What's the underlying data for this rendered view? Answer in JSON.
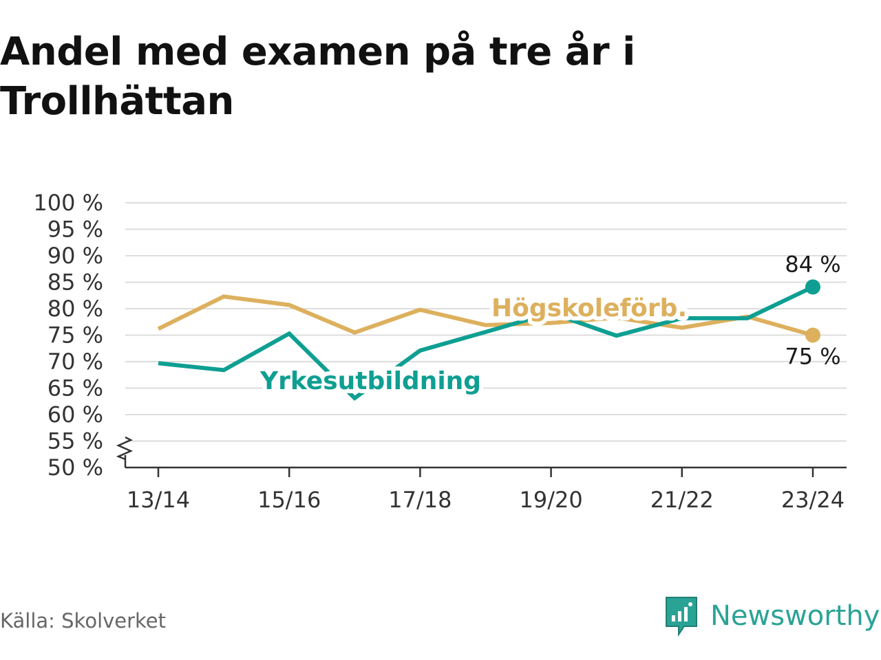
{
  "title": "Andel med examen på tre år i Trollhättan",
  "source": "Källa: Skolverket",
  "brand": {
    "name": "Newsworthy",
    "icon": "newsworthy-logo-icon",
    "color": "#2aa395"
  },
  "chart_data": {
    "type": "line",
    "title": "Andel med examen på tre år i Trollhättan",
    "xlabel": "",
    "ylabel": "",
    "x": [
      "13/14",
      "14/15",
      "15/16",
      "16/17",
      "17/18",
      "18/19",
      "19/20",
      "20/21",
      "21/22",
      "22/23",
      "23/24"
    ],
    "x_tick_labels": [
      "13/14",
      "15/16",
      "17/18",
      "19/20",
      "21/22",
      "23/24"
    ],
    "ylim": [
      50,
      100
    ],
    "y_ticks": [
      50,
      55,
      60,
      65,
      70,
      75,
      80,
      85,
      90,
      95,
      100
    ],
    "y_tick_labels": [
      "50 %",
      "55 %",
      "60 %",
      "65 %",
      "70 %",
      "75 %",
      "80 %",
      "85 %",
      "90 %",
      "95 %",
      "100 %"
    ],
    "y_axis_broken": true,
    "grid": true,
    "series": [
      {
        "name": "Högskoleförb.",
        "color": "#ddb05e",
        "values": [
          76.2,
          82.3,
          80.7,
          75.5,
          79.8,
          76.9,
          77.3,
          78.3,
          76.4,
          78.5,
          75.0
        ],
        "end_label": "75 %"
      },
      {
        "name": "Yrkesutbildning",
        "color": "#0e9f92",
        "values": [
          69.7,
          68.4,
          75.3,
          63.1,
          72.1,
          75.6,
          79.2,
          74.9,
          78.2,
          78.2,
          84.1
        ],
        "end_label": "84 %"
      }
    ]
  }
}
